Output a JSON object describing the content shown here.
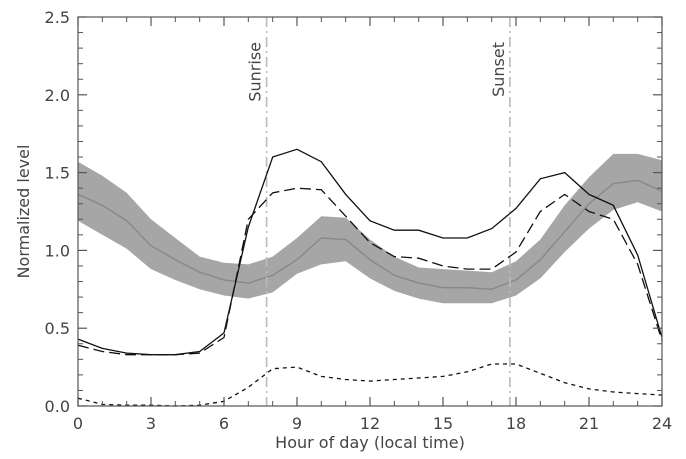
{
  "chart_data": {
    "type": "line",
    "xlabel": "Hour of day (local time)",
    "ylabel": "Normalized level",
    "xlim": [
      0,
      24
    ],
    "ylim": [
      0,
      2.5
    ],
    "x_ticks": [
      "0",
      "3",
      "6",
      "9",
      "12",
      "15",
      "18",
      "21",
      "24"
    ],
    "y_ticks": [
      "0.0",
      "0.5",
      "1.0",
      "1.5",
      "2.0",
      "2.5"
    ],
    "grid": false,
    "legend": "none",
    "x": [
      0,
      1,
      2,
      3,
      4,
      5,
      6,
      7,
      8,
      9,
      10,
      11,
      12,
      13,
      14,
      15,
      16,
      17,
      18,
      19,
      20,
      21,
      22,
      23,
      24
    ],
    "band": {
      "center": [
        1.36,
        1.29,
        1.19,
        1.03,
        0.94,
        0.86,
        0.81,
        0.79,
        0.84,
        0.94,
        1.08,
        1.07,
        0.94,
        0.84,
        0.79,
        0.76,
        0.76,
        0.75,
        0.81,
        0.94,
        1.12,
        1.3,
        1.43,
        1.45,
        1.38
      ],
      "lower": [
        1.19,
        1.1,
        1.01,
        0.88,
        0.81,
        0.75,
        0.71,
        0.69,
        0.73,
        0.85,
        0.91,
        0.93,
        0.82,
        0.74,
        0.69,
        0.66,
        0.66,
        0.66,
        0.71,
        0.82,
        0.99,
        1.14,
        1.26,
        1.31,
        1.25
      ],
      "upper": [
        1.57,
        1.48,
        1.37,
        1.2,
        1.08,
        0.96,
        0.92,
        0.91,
        0.96,
        1.08,
        1.22,
        1.21,
        1.07,
        0.96,
        0.89,
        0.88,
        0.87,
        0.86,
        0.93,
        1.07,
        1.29,
        1.47,
        1.62,
        1.62,
        1.58
      ],
      "color": "#a6a6a6",
      "line_color": "#888888"
    },
    "series": [
      {
        "values": [
          0.43,
          0.37,
          0.34,
          0.33,
          0.33,
          0.35,
          0.47,
          1.15,
          1.6,
          1.65,
          1.57,
          1.36,
          1.19,
          1.13,
          1.13,
          1.08,
          1.08,
          1.14,
          1.27,
          1.46,
          1.5,
          1.36,
          1.29,
          0.97,
          0.44
        ],
        "style": "solid",
        "color": "#111111"
      },
      {
        "values": [
          0.39,
          0.35,
          0.33,
          0.33,
          0.33,
          0.34,
          0.44,
          1.2,
          1.37,
          1.4,
          1.39,
          1.22,
          1.05,
          0.96,
          0.95,
          0.9,
          0.88,
          0.88,
          0.99,
          1.25,
          1.36,
          1.25,
          1.2,
          0.91,
          0.42
        ],
        "style": "long-dash",
        "color": "#111111"
      },
      {
        "values": [
          0.05,
          0.01,
          0.005,
          0.005,
          0.0,
          0.005,
          0.03,
          0.12,
          0.24,
          0.25,
          0.19,
          0.17,
          0.16,
          0.17,
          0.18,
          0.19,
          0.22,
          0.27,
          0.27,
          0.21,
          0.15,
          0.11,
          0.09,
          0.08,
          0.07
        ],
        "style": "short-dash",
        "color": "#111111"
      }
    ],
    "annotations": [
      {
        "text": "Sunrise",
        "x": 7.75
      },
      {
        "text": "Sunset",
        "x": 17.75
      }
    ],
    "annotation_color": "#bbbbbb"
  }
}
